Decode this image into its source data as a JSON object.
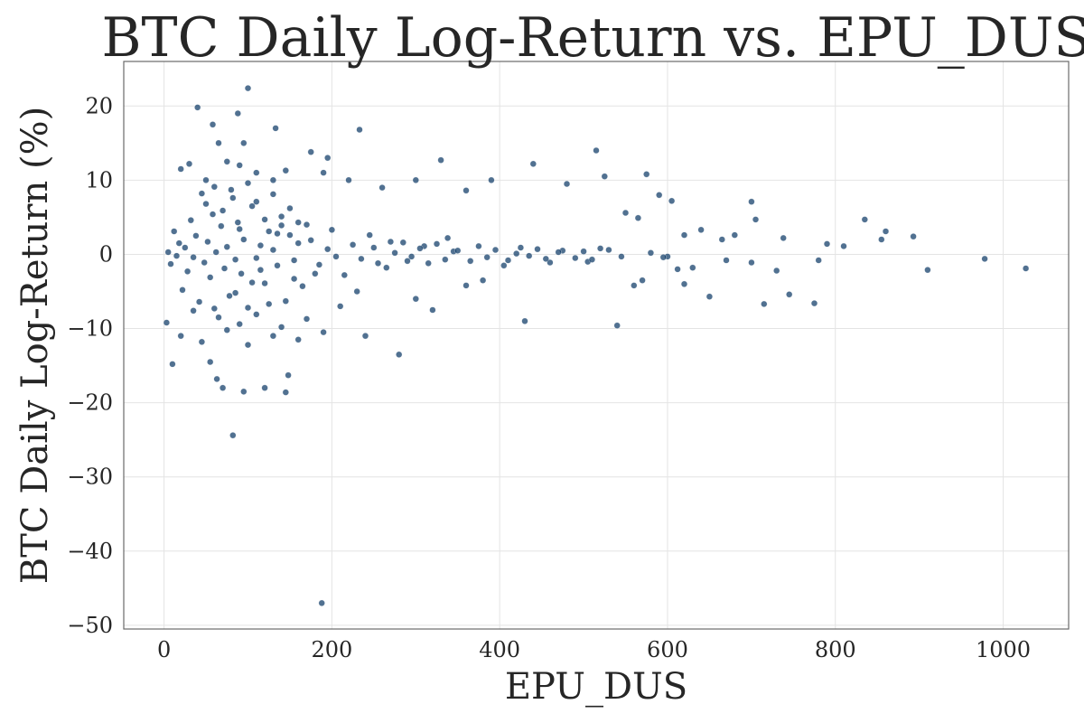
{
  "chart_data": {
    "type": "scatter",
    "title": "BTC Daily Log-Return vs. EPU_DUS",
    "xlabel": "EPU_DUS",
    "ylabel": "BTC Daily Log-Return (%)",
    "xlim": [
      -48,
      1078
    ],
    "ylim": [
      -50.5,
      26
    ],
    "xticks": [
      0,
      200,
      400,
      600,
      800,
      1000
    ],
    "xtick_labels": [
      "0",
      "200",
      "400",
      "600",
      "800",
      "1000"
    ],
    "yticks": [
      -50,
      -40,
      -30,
      -20,
      -10,
      0,
      10,
      20
    ],
    "ytick_labels": [
      "−50",
      "−40",
      "−30",
      "−20",
      "−10",
      "0",
      "10",
      "20"
    ],
    "grid": true,
    "legend": "none",
    "marker_color": "#0e3a66",
    "series": [
      {
        "points": [
          [
            100,
            22.4
          ],
          [
            40,
            19.8
          ],
          [
            88,
            19
          ],
          [
            133,
            17
          ],
          [
            233,
            16.8
          ],
          [
            58,
            17.5
          ],
          [
            95,
            15
          ],
          [
            65,
            15
          ],
          [
            175,
            13.8
          ],
          [
            195,
            13
          ],
          [
            515,
            14
          ],
          [
            30,
            12.2
          ],
          [
            75,
            12.5
          ],
          [
            90,
            12
          ],
          [
            145,
            11.3
          ],
          [
            110,
            11
          ],
          [
            20,
            11.5
          ],
          [
            190,
            11
          ],
          [
            330,
            12.7
          ],
          [
            440,
            12.2
          ],
          [
            220,
            10
          ],
          [
            300,
            10
          ],
          [
            390,
            10
          ],
          [
            525,
            10.5
          ],
          [
            575,
            10.8
          ],
          [
            480,
            9.5
          ],
          [
            50,
            10
          ],
          [
            260,
            9
          ],
          [
            130,
            10
          ],
          [
            590,
            8
          ],
          [
            360,
            8.6
          ],
          [
            605,
            7.2
          ],
          [
            700,
            7.1
          ],
          [
            705,
            4.7
          ],
          [
            835,
            4.7
          ],
          [
            860,
            3.1
          ],
          [
            855,
            2
          ],
          [
            893,
            2.4
          ],
          [
            790,
            1.4
          ],
          [
            810,
            1.1
          ],
          [
            738,
            2.2
          ],
          [
            680,
            2.6
          ],
          [
            665,
            2
          ],
          [
            640,
            3.3
          ],
          [
            620,
            2.6
          ],
          [
            550,
            5.6
          ],
          [
            565,
            4.9
          ],
          [
            620,
            -4
          ],
          [
            650,
            -5.7
          ],
          [
            540,
            -9.6
          ],
          [
            430,
            -9
          ],
          [
            380,
            -3.5
          ],
          [
            360,
            -4.2
          ],
          [
            300,
            -6
          ],
          [
            320,
            -7.5
          ],
          [
            280,
            -13.5
          ],
          [
            240,
            -11
          ],
          [
            210,
            -7
          ],
          [
            190,
            -10.5
          ],
          [
            230,
            -5
          ],
          [
            560,
            -4.2
          ],
          [
            570,
            -3.5
          ],
          [
            612,
            -2
          ],
          [
            700,
            -1.1
          ],
          [
            730,
            -2.2
          ],
          [
            745,
            -5.4
          ],
          [
            775,
            -6.6
          ],
          [
            715,
            -6.7
          ],
          [
            780,
            -0.8
          ],
          [
            910,
            -2.1
          ],
          [
            978,
            -0.6
          ],
          [
            1027,
            -1.9
          ],
          [
            630,
            -1.8
          ],
          [
            670,
            -0.8
          ],
          [
            600,
            -0.3
          ],
          [
            475,
            0.5
          ],
          [
            505,
            -1
          ],
          [
            520,
            0.8
          ],
          [
            460,
            -1.1
          ],
          [
            420,
            0.1
          ],
          [
            405,
            -1.5
          ],
          [
            345,
            0.4
          ],
          [
            338,
            2.2
          ],
          [
            310,
            1.1
          ],
          [
            290,
            -0.9
          ],
          [
            270,
            1.7
          ],
          [
            255,
            -1.2
          ],
          [
            245,
            2.6
          ],
          [
            205,
            -0.3
          ],
          [
            200,
            3.3
          ],
          [
            180,
            -2.6
          ],
          [
            170,
            4
          ],
          [
            165,
            -4.3
          ],
          [
            160,
            1.5
          ],
          [
            155,
            -0.8
          ],
          [
            150,
            2.6
          ],
          [
            145,
            -6.3
          ],
          [
            140,
            5.1
          ],
          [
            135,
            -1.5
          ],
          [
            130,
            0.6
          ],
          [
            125,
            3.1
          ],
          [
            120,
            -3.9
          ],
          [
            115,
            1.2
          ],
          [
            110,
            -0.5
          ],
          [
            105,
            6.5
          ],
          [
            100,
            -7.2
          ],
          [
            95,
            2
          ],
          [
            92,
            -2.6
          ],
          [
            88,
            4.3
          ],
          [
            85,
            -0.7
          ],
          [
            82,
            7.6
          ],
          [
            78,
            -5.6
          ],
          [
            75,
            1
          ],
          [
            72,
            -1.9
          ],
          [
            68,
            3.8
          ],
          [
            65,
            -8.5
          ],
          [
            62,
            0.3
          ],
          [
            58,
            5.4
          ],
          [
            55,
            -3.1
          ],
          [
            52,
            1.7
          ],
          [
            48,
            -1.1
          ],
          [
            45,
            8.2
          ],
          [
            42,
            -6.4
          ],
          [
            38,
            2.5
          ],
          [
            35,
            -0.4
          ],
          [
            32,
            4.6
          ],
          [
            28,
            -2.3
          ],
          [
            25,
            0.9
          ],
          [
            22,
            -4.8
          ],
          [
            18,
            1.5
          ],
          [
            15,
            -0.2
          ],
          [
            12,
            3.1
          ],
          [
            8,
            -1.3
          ],
          [
            5,
            0.3
          ],
          [
            3,
            -9.2
          ],
          [
            10,
            -14.8
          ],
          [
            20,
            -11
          ],
          [
            35,
            -7.6
          ],
          [
            45,
            -11.8
          ],
          [
            55,
            -14.5
          ],
          [
            63,
            -16.8
          ],
          [
            70,
            -18
          ],
          [
            82,
            -24.4
          ],
          [
            95,
            -18.5
          ],
          [
            120,
            -18
          ],
          [
            145,
            -18.6
          ],
          [
            148,
            -16.3
          ],
          [
            100,
            -12.2
          ],
          [
            130,
            -11
          ],
          [
            160,
            -11.5
          ],
          [
            188,
            -47
          ],
          [
            75,
            -10.2
          ],
          [
            90,
            -9.4
          ],
          [
            110,
            -8.1
          ],
          [
            140,
            -9.8
          ],
          [
            170,
            -8.7
          ],
          [
            85,
            -5.2
          ],
          [
            105,
            -3.8
          ],
          [
            125,
            -6.7
          ],
          [
            60,
            -7.3
          ],
          [
            50,
            6.8
          ],
          [
            60,
            9.1
          ],
          [
            70,
            5.9
          ],
          [
            80,
            8.7
          ],
          [
            90,
            3.4
          ],
          [
            100,
            9.6
          ],
          [
            110,
            7.1
          ],
          [
            120,
            4.7
          ],
          [
            130,
            8.1
          ],
          [
            140,
            3.9
          ],
          [
            150,
            6.2
          ],
          [
            160,
            4.3
          ],
          [
            115,
            -2.1
          ],
          [
            135,
            2.8
          ],
          [
            155,
            -3.3
          ],
          [
            175,
            1.9
          ],
          [
            185,
            -1.4
          ],
          [
            195,
            0.7
          ],
          [
            215,
            -2.8
          ],
          [
            225,
            1.3
          ],
          [
            235,
            -0.6
          ],
          [
            250,
            0.9
          ],
          [
            265,
            -1.8
          ],
          [
            275,
            0.2
          ],
          [
            285,
            1.6
          ],
          [
            295,
            -0.3
          ],
          [
            305,
            0.8
          ],
          [
            315,
            -1.2
          ],
          [
            325,
            1.4
          ],
          [
            335,
            -0.7
          ],
          [
            350,
            0.5
          ],
          [
            365,
            -0.9
          ],
          [
            375,
            1.1
          ],
          [
            385,
            -0.4
          ],
          [
            395,
            0.6
          ],
          [
            410,
            -0.8
          ],
          [
            425,
            0.9
          ],
          [
            435,
            -0.2
          ],
          [
            445,
            0.7
          ],
          [
            455,
            -0.6
          ],
          [
            470,
            0.3
          ],
          [
            490,
            -0.5
          ],
          [
            500,
            0.4
          ],
          [
            510,
            -0.7
          ],
          [
            530,
            0.6
          ],
          [
            545,
            -0.3
          ],
          [
            580,
            0.2
          ],
          [
            595,
            -0.4
          ]
        ]
      }
    ]
  }
}
